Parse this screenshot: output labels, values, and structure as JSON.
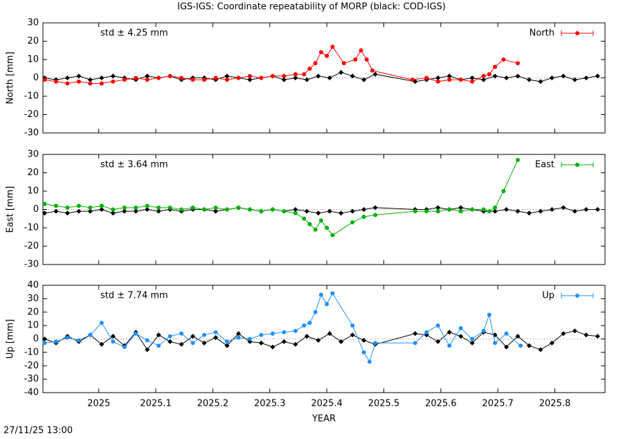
{
  "title": "IGS-IGS: Coordinate repeatability of MORP (black: COD-IGS)",
  "timestamp": "27/11/25 13:00",
  "chart_data": [
    {
      "type": "line",
      "ylabel": "North [mm]",
      "annotation": "std ± 4.25 mm",
      "xlim": [
        2024.902,
        2025.888
      ],
      "xticks": [
        2025,
        2025.1,
        2025.2,
        2025.3,
        2025.4,
        2025.5,
        2025.6,
        2025.7,
        2025.8
      ],
      "ylim": [
        -30,
        30
      ],
      "yticks": [
        -30,
        -20,
        -10,
        0,
        10,
        20,
        30
      ],
      "series": [
        {
          "color": "#000000",
          "x": [
            2024.905,
            2024.925,
            2024.945,
            2024.965,
            2024.985,
            2025.005,
            2025.025,
            2025.045,
            2025.065,
            2025.085,
            2025.105,
            2025.125,
            2025.145,
            2025.165,
            2025.185,
            2025.205,
            2025.225,
            2025.245,
            2025.265,
            2025.285,
            2025.305,
            2025.325,
            2025.345,
            2025.365,
            2025.385,
            2025.405,
            2025.425,
            2025.445,
            2025.465,
            2025.485,
            2025.555,
            2025.575,
            2025.595,
            2025.615,
            2025.635,
            2025.655,
            2025.675,
            2025.695,
            2025.715,
            2025.735,
            2025.755,
            2025.775,
            2025.795,
            2025.815,
            2025.835,
            2025.855,
            2025.875
          ],
          "values": [
            0,
            -1,
            0,
            1,
            -1,
            0,
            1,
            0,
            -1,
            1,
            0,
            1,
            -1,
            0,
            0,
            -1,
            1,
            0,
            -1,
            0,
            1,
            -1,
            0,
            -1,
            1,
            0,
            3,
            1,
            -1,
            2,
            -2,
            -1,
            0,
            1,
            -1,
            0,
            -1,
            1,
            0,
            1,
            -1,
            -2,
            0,
            1,
            -1,
            0,
            1
          ]
        },
        {
          "name": "North",
          "color": "#ff0000",
          "x": [
            2024.905,
            2024.925,
            2024.945,
            2024.965,
            2024.985,
            2025.005,
            2025.025,
            2025.045,
            2025.065,
            2025.085,
            2025.105,
            2025.125,
            2025.145,
            2025.165,
            2025.185,
            2025.205,
            2025.225,
            2025.245,
            2025.265,
            2025.285,
            2025.305,
            2025.325,
            2025.345,
            2025.36,
            2025.37,
            2025.38,
            2025.39,
            2025.4,
            2025.41,
            2025.43,
            2025.45,
            2025.46,
            2025.47,
            2025.48,
            2025.55,
            2025.575,
            2025.595,
            2025.615,
            2025.635,
            2025.655,
            2025.675,
            2025.685,
            2025.695,
            2025.71,
            2025.735
          ],
          "values": [
            -1,
            -2,
            -3,
            -2,
            -3,
            -3,
            -2,
            -1,
            0,
            -1,
            0,
            1,
            0,
            -1,
            -1,
            0,
            -1,
            0,
            1,
            0,
            1,
            1,
            2,
            2,
            5,
            8,
            14,
            12,
            17,
            8,
            10,
            15,
            10,
            4,
            -1,
            0,
            -2,
            -1,
            -1,
            -2,
            1,
            2,
            6,
            10,
            8
          ]
        }
      ]
    },
    {
      "type": "line",
      "ylabel": "East [mm]",
      "annotation": "std ± 3.64 mm",
      "xlim": [
        2024.902,
        2025.888
      ],
      "xticks": [
        2025,
        2025.1,
        2025.2,
        2025.3,
        2025.4,
        2025.5,
        2025.6,
        2025.7,
        2025.8
      ],
      "ylim": [
        -30,
        30
      ],
      "yticks": [
        -30,
        -20,
        -10,
        0,
        10,
        20,
        30
      ],
      "series": [
        {
          "color": "#000000",
          "x": [
            2024.905,
            2024.925,
            2024.945,
            2024.965,
            2024.985,
            2025.005,
            2025.025,
            2025.045,
            2025.065,
            2025.085,
            2025.105,
            2025.125,
            2025.145,
            2025.165,
            2025.185,
            2025.205,
            2025.225,
            2025.245,
            2025.265,
            2025.285,
            2025.305,
            2025.325,
            2025.345,
            2025.365,
            2025.385,
            2025.405,
            2025.425,
            2025.445,
            2025.465,
            2025.485,
            2025.555,
            2025.575,
            2025.595,
            2025.615,
            2025.635,
            2025.655,
            2025.675,
            2025.695,
            2025.715,
            2025.735,
            2025.755,
            2025.775,
            2025.795,
            2025.815,
            2025.835,
            2025.855,
            2025.875
          ],
          "values": [
            -2,
            -1,
            -2,
            -1,
            -1,
            0,
            -2,
            -1,
            -1,
            0,
            -1,
            0,
            -1,
            0,
            0,
            -1,
            0,
            1,
            0,
            -1,
            0,
            -1,
            0,
            -1,
            -2,
            -1,
            -2,
            -1,
            0,
            1,
            0,
            0,
            1,
            0,
            1,
            0,
            -1,
            -1,
            0,
            -1,
            -2,
            -1,
            0,
            1,
            -1,
            0,
            0
          ]
        },
        {
          "name": "East",
          "color": "#00b000",
          "x": [
            2024.905,
            2024.925,
            2024.945,
            2024.965,
            2024.985,
            2025.005,
            2025.025,
            2025.045,
            2025.065,
            2025.085,
            2025.105,
            2025.125,
            2025.145,
            2025.165,
            2025.185,
            2025.205,
            2025.225,
            2025.245,
            2025.265,
            2025.285,
            2025.305,
            2025.325,
            2025.345,
            2025.36,
            2025.37,
            2025.38,
            2025.39,
            2025.4,
            2025.41,
            2025.445,
            2025.465,
            2025.485,
            2025.555,
            2025.575,
            2025.595,
            2025.615,
            2025.635,
            2025.655,
            2025.675,
            2025.685,
            2025.695,
            2025.71,
            2025.735
          ],
          "values": [
            3,
            2,
            1,
            2,
            1,
            2,
            0,
            1,
            1,
            2,
            1,
            1,
            0,
            1,
            0,
            1,
            0,
            1,
            0,
            -1,
            0,
            -1,
            -2,
            -5,
            -8,
            -11,
            -6,
            -10,
            -14,
            -7,
            -4,
            -3,
            -1,
            -1,
            -1,
            0,
            -1,
            0,
            0,
            -1,
            1,
            10,
            27
          ]
        }
      ]
    },
    {
      "type": "line",
      "ylabel": "Up [mm]",
      "annotation": "std ± 7.74 mm",
      "xlabel": "YEAR",
      "xlim": [
        2024.902,
        2025.888
      ],
      "xticks": [
        2025,
        2025.1,
        2025.2,
        2025.3,
        2025.4,
        2025.5,
        2025.6,
        2025.7,
        2025.8
      ],
      "ylim": [
        -40,
        40
      ],
      "yticks": [
        -40,
        -30,
        -20,
        -10,
        0,
        10,
        20,
        30,
        40
      ],
      "series": [
        {
          "color": "#000000",
          "x": [
            2024.905,
            2024.925,
            2024.945,
            2024.965,
            2024.985,
            2025.005,
            2025.025,
            2025.045,
            2025.065,
            2025.085,
            2025.105,
            2025.125,
            2025.145,
            2025.165,
            2025.185,
            2025.205,
            2025.225,
            2025.245,
            2025.265,
            2025.285,
            2025.305,
            2025.325,
            2025.345,
            2025.365,
            2025.385,
            2025.405,
            2025.425,
            2025.445,
            2025.465,
            2025.485,
            2025.555,
            2025.575,
            2025.595,
            2025.615,
            2025.635,
            2025.655,
            2025.675,
            2025.695,
            2025.715,
            2025.735,
            2025.755,
            2025.775,
            2025.795,
            2025.815,
            2025.835,
            2025.855,
            2025.875
          ],
          "values": [
            0,
            -3,
            2,
            -2,
            3,
            -4,
            2,
            -5,
            5,
            -8,
            3,
            -2,
            -4,
            2,
            -3,
            1,
            -5,
            4,
            -2,
            -3,
            -6,
            -2,
            -4,
            2,
            -1,
            4,
            -2,
            3,
            -1,
            -4,
            4,
            3,
            -2,
            5,
            2,
            -3,
            5,
            3,
            -6,
            2,
            -5,
            -8,
            -3,
            4,
            6,
            3,
            2
          ]
        },
        {
          "name": "Up",
          "color": "#1e90ff",
          "x": [
            2024.905,
            2024.925,
            2024.945,
            2024.965,
            2024.985,
            2025.005,
            2025.025,
            2025.045,
            2025.065,
            2025.085,
            2025.105,
            2025.125,
            2025.145,
            2025.165,
            2025.185,
            2025.205,
            2025.225,
            2025.245,
            2025.265,
            2025.285,
            2025.305,
            2025.325,
            2025.345,
            2025.36,
            2025.37,
            2025.38,
            2025.39,
            2025.4,
            2025.41,
            2025.445,
            2025.465,
            2025.475,
            2025.485,
            2025.555,
            2025.575,
            2025.595,
            2025.615,
            2025.635,
            2025.655,
            2025.675,
            2025.685,
            2025.695,
            2025.715,
            2025.74
          ],
          "values": [
            -3,
            -2,
            1,
            -1,
            3,
            12,
            -2,
            -6,
            4,
            -1,
            -5,
            2,
            4,
            -3,
            3,
            5,
            -2,
            1,
            0,
            3,
            4,
            5,
            6,
            10,
            12,
            20,
            33,
            26,
            34,
            10,
            -10,
            -17,
            -3,
            -3,
            5,
            10,
            -5,
            8,
            0,
            6,
            18,
            -3,
            4,
            -5
          ]
        }
      ]
    }
  ]
}
